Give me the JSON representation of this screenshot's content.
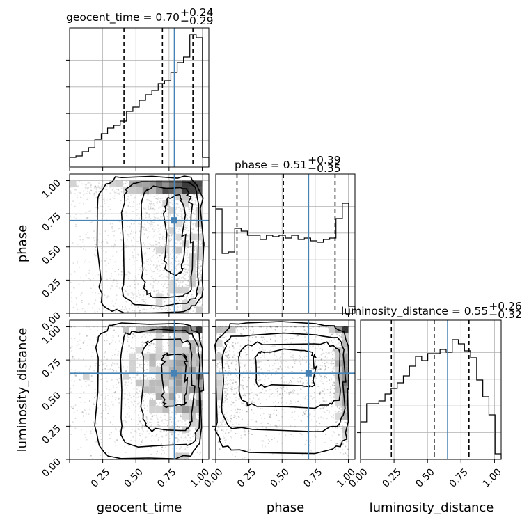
{
  "chart_data": {
    "type": "corner",
    "parameters": [
      "geocent_time",
      "phase",
      "luminosity_distance"
    ],
    "truths": [
      0.79,
      0.7,
      0.65
    ],
    "truth_color": "#4682b4",
    "axis_range": [
      0.0,
      1.05
    ],
    "x_tick_labels": [
      "0.25",
      "0.50",
      "0.75",
      "1.00"
    ],
    "x_tick_labels_with_zero": [
      "0.00",
      "0.25",
      "0.50",
      "0.75",
      "1.00"
    ],
    "y_tick_labels": [
      "0.00",
      "0.25",
      "0.50",
      "0.75",
      "1.00"
    ],
    "titles": [
      {
        "name": "geocent_time",
        "median": "0.70",
        "plus": "+0.24",
        "minus": "−0.29"
      },
      {
        "name": "phase",
        "median": "0.51",
        "plus": "+0.39",
        "minus": "−0.35"
      },
      {
        "name": "luminosity_distance",
        "median": "0.55",
        "plus": "+0.26",
        "minus": "−0.32"
      }
    ],
    "quantiles": [
      [
        0.41,
        0.7,
        0.93
      ],
      [
        0.16,
        0.51,
        0.9
      ],
      [
        0.23,
        0.55,
        0.81
      ]
    ],
    "histograms": [
      [
        0.07,
        0.08,
        0.11,
        0.14,
        0.2,
        0.24,
        0.28,
        0.3,
        0.33,
        0.4,
        0.43,
        0.48,
        0.52,
        0.55,
        0.6,
        0.62,
        0.68,
        0.75,
        0.79,
        0.95,
        0.93,
        0.07
      ],
      [
        0.75,
        0.43,
        0.44,
        0.61,
        0.59,
        0.56,
        0.56,
        0.53,
        0.56,
        0.55,
        0.56,
        0.54,
        0.56,
        0.53,
        0.54,
        0.52,
        0.51,
        0.53,
        0.54,
        0.68,
        0.79,
        0.05
      ],
      [
        0.27,
        0.4,
        0.4,
        0.42,
        0.47,
        0.51,
        0.55,
        0.6,
        0.67,
        0.74,
        0.71,
        0.76,
        0.76,
        0.79,
        0.77,
        0.86,
        0.83,
        0.78,
        0.73,
        0.57,
        0.45,
        0.32,
        0.04
      ]
    ],
    "densities": [
      {
        "x": "geocent_time",
        "y": "phase",
        "concentration": "high x, near-uniform y"
      },
      {
        "x": "geocent_time",
        "y": "luminosity_distance",
        "concentration": "high x, mid-high y"
      },
      {
        "x": "phase",
        "y": "luminosity_distance",
        "concentration": "edges of phase, mid-high y"
      }
    ]
  }
}
